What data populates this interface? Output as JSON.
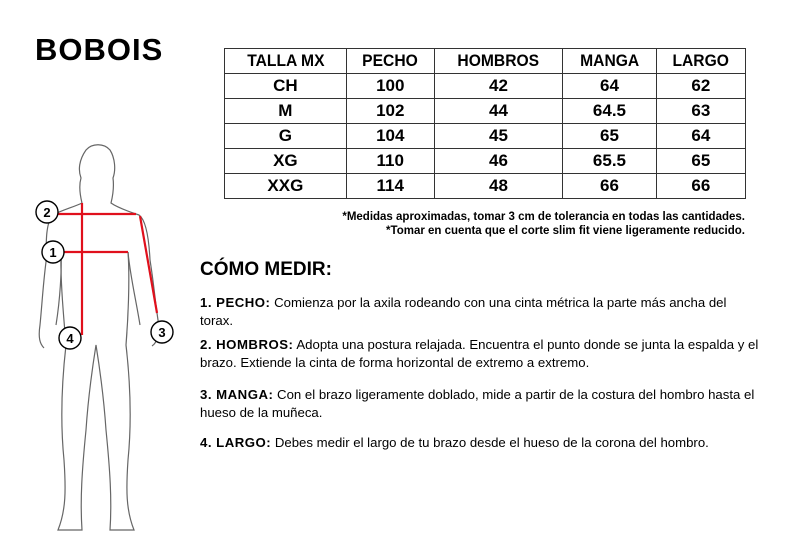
{
  "brand": "BOBOIS",
  "table": {
    "headers": [
      "TALLA MX",
      "PECHO",
      "HOMBROS",
      "MANGA",
      "LARGO"
    ],
    "rows": [
      [
        "CH",
        "100",
        "42",
        "64",
        "62"
      ],
      [
        "M",
        "102",
        "44",
        "64.5",
        "63"
      ],
      [
        "G",
        "104",
        "45",
        "65",
        "64"
      ],
      [
        "XG",
        "110",
        "46",
        "65.5",
        "65"
      ],
      [
        "XXG",
        "114",
        "48",
        "66",
        "66"
      ]
    ]
  },
  "notes": [
    "*Medidas aproximadas, tomar 3 cm de tolerancia en todas las cantidades.",
    "*Tomar en cuenta que el corte slim fit viene ligeramente reducido."
  ],
  "how_title": "CÓMO MEDIR:",
  "steps": [
    {
      "label": "1. PECHO:",
      "text": " Comienza por la axila rodeando con una cinta métrica la parte más ancha del torax."
    },
    {
      "label": "2. HOMBROS:",
      "text": " Adopta una postura relajada. Encuentra el punto donde se junta la espalda y el brazo. Extiende la cinta de forma horizontal de extremo a extremo."
    },
    {
      "label": "3. MANGA:",
      "text": " Con el brazo ligeramente doblado, mide a partir de la costura del hombro hasta el hueso de la muñeca."
    },
    {
      "label": "4. LARGO:",
      "text": " Debes medir el largo de tu brazo desde el hueso de la corona del hombro."
    }
  ],
  "figure_markers": [
    "1",
    "2",
    "3",
    "4"
  ],
  "colors": {
    "measure_line": "#e0101c"
  }
}
